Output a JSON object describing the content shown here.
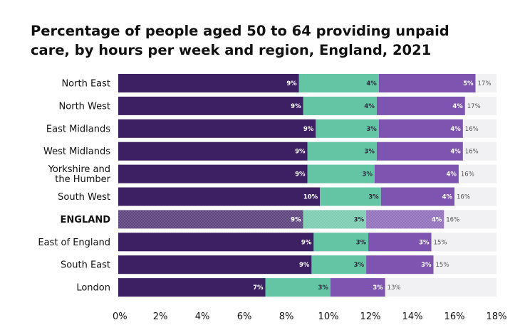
{
  "title": {
    "line1": "Percentage of people aged 50 to 64 providing unpaid",
    "line2": "care, by hours per week and region, England, 2021"
  },
  "chart_data": {
    "type": "bar",
    "orientation": "horizontal",
    "stacked": true,
    "categories": [
      [
        "North East"
      ],
      [
        "North West"
      ],
      [
        "East Midlands"
      ],
      [
        "West Midlands"
      ],
      [
        "Yorkshire and",
        "the Humber"
      ],
      [
        "South West"
      ],
      [
        "ENGLAND"
      ],
      [
        "East of England"
      ],
      [
        "South East"
      ],
      [
        "London"
      ]
    ],
    "highlighted_category_index": 6,
    "series": [
      {
        "color": "#3d1f63",
        "values": [
          8.6,
          8.8,
          9.4,
          9.0,
          9.0,
          9.6,
          8.8,
          9.3,
          9.2,
          7.0
        ],
        "labels": [
          "9%",
          "9%",
          "9%",
          "9%",
          "9%",
          "10%",
          "9%",
          "9%",
          "9%",
          "7%"
        ]
      },
      {
        "color": "#63c5a4",
        "values": [
          3.8,
          3.5,
          3.0,
          3.3,
          3.2,
          2.9,
          3.0,
          2.6,
          2.6,
          3.1
        ],
        "labels": [
          "4%",
          "4%",
          "3%",
          "3%",
          "3%",
          "3%",
          "3%",
          "3%",
          "3%",
          "3%"
        ]
      },
      {
        "color": "#7d55b0",
        "values": [
          4.6,
          4.2,
          4.0,
          4.1,
          4.0,
          3.5,
          3.7,
          3.0,
          3.2,
          2.6
        ],
        "labels": [
          "5%",
          "4%",
          "4%",
          "4%",
          "4%",
          "4%",
          "4%",
          "3%",
          "3%",
          "3%"
        ]
      }
    ],
    "totals": [
      "17%",
      "17%",
      "16%",
      "16%",
      "16%",
      "16%",
      "16%",
      "15%",
      "15%",
      "13%"
    ],
    "xlim": [
      0,
      18
    ],
    "xticks": [
      "0%",
      "2%",
      "4%",
      "6%",
      "8%",
      "10%",
      "12%",
      "14%",
      "16%",
      "18%"
    ],
    "xtick_values": [
      0,
      2,
      4,
      6,
      8,
      10,
      12,
      14,
      16,
      18
    ],
    "background_track_color": "#f1f1f3",
    "grid": false,
    "legend": "none"
  }
}
